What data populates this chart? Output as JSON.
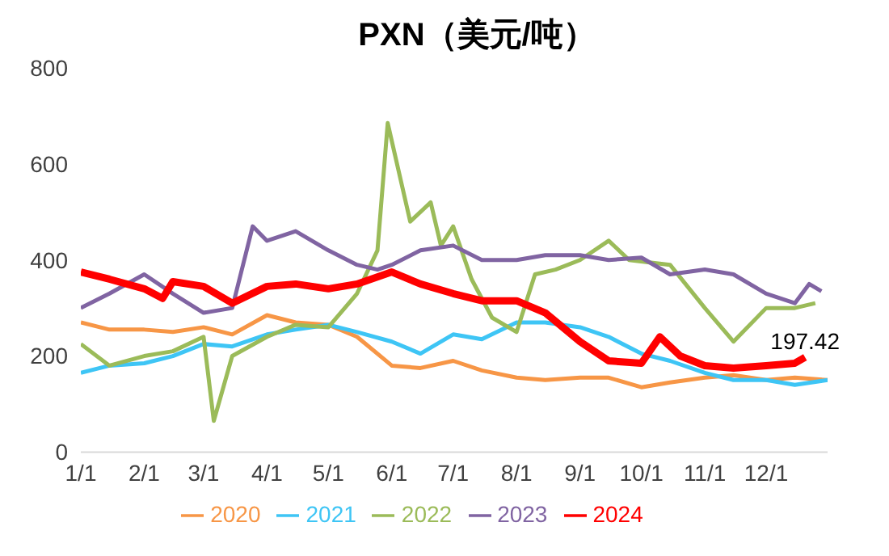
{
  "chart_data": {
    "type": "line",
    "title": "PXN（美元/吨）",
    "ylim": [
      0,
      800
    ],
    "yticks": [
      0,
      200,
      400,
      600,
      800
    ],
    "xlim": [
      "--01-01",
      "--12-31"
    ],
    "xticks": [
      {
        "value": "--01-01",
        "label": "1/1"
      },
      {
        "value": "--02-01",
        "label": "2/1"
      },
      {
        "value": "--03-01",
        "label": "3/1"
      },
      {
        "value": "--04-01",
        "label": "4/1"
      },
      {
        "value": "--05-01",
        "label": "5/1"
      },
      {
        "value": "--06-01",
        "label": "6/1"
      },
      {
        "value": "--07-01",
        "label": "7/1"
      },
      {
        "value": "--08-01",
        "label": "8/1"
      },
      {
        "value": "--09-01",
        "label": "9/1"
      },
      {
        "value": "--10-01",
        "label": "10/1"
      },
      {
        "value": "--11-01",
        "label": "11/1"
      },
      {
        "value": "--12-01",
        "label": "12/1"
      }
    ],
    "grid": false,
    "legend": "bottom",
    "marker": "none",
    "line_style": "solid",
    "annotations": [
      {
        "text": "197.42",
        "x": "--12-20",
        "y": 197.42
      }
    ],
    "series": [
      {
        "name": "2020",
        "color": "#f79646",
        "x": [
          "--01-01",
          "--01-15",
          "--02-01",
          "--02-15",
          "--03-01",
          "--03-15",
          "--04-01",
          "--04-15",
          "--05-01",
          "--05-15",
          "--06-01",
          "--06-15",
          "--07-01",
          "--07-15",
          "--08-01",
          "--08-15",
          "--09-01",
          "--09-15",
          "--10-01",
          "--10-15",
          "--11-01",
          "--11-15",
          "--12-01",
          "--12-15",
          "--12-31"
        ],
        "values": [
          270,
          255,
          255,
          250,
          260,
          245,
          285,
          270,
          265,
          240,
          180,
          175,
          190,
          170,
          155,
          150,
          155,
          155,
          135,
          145,
          155,
          160,
          150,
          155,
          150
        ]
      },
      {
        "name": "2021",
        "color": "#3ec5f5",
        "x": [
          "--01-01",
          "--01-15",
          "--02-01",
          "--02-15",
          "--03-01",
          "--03-15",
          "--04-01",
          "--04-15",
          "--05-01",
          "--05-15",
          "--06-01",
          "--06-15",
          "--07-01",
          "--07-15",
          "--08-01",
          "--08-15",
          "--09-01",
          "--09-15",
          "--10-01",
          "--10-15",
          "--11-01",
          "--11-15",
          "--12-01",
          "--12-15",
          "--12-31"
        ],
        "values": [
          165,
          180,
          185,
          200,
          225,
          220,
          245,
          255,
          265,
          250,
          230,
          205,
          245,
          235,
          270,
          270,
          260,
          240,
          205,
          190,
          165,
          150,
          150,
          140,
          150
        ]
      },
      {
        "name": "2022",
        "color": "#9bbb59",
        "x": [
          "--01-01",
          "--01-15",
          "--02-01",
          "--02-15",
          "--03-01",
          "--03-06",
          "--03-15",
          "--04-01",
          "--04-15",
          "--05-01",
          "--05-15",
          "--05-25",
          "--05-30",
          "--06-10",
          "--06-20",
          "--06-25",
          "--07-01",
          "--07-10",
          "--07-20",
          "--08-01",
          "--08-10",
          "--08-20",
          "--09-01",
          "--09-15",
          "--09-25",
          "--10-15",
          "--11-01",
          "--11-15",
          "--12-01",
          "--12-15",
          "--12-25"
        ],
        "values": [
          225,
          180,
          200,
          210,
          240,
          65,
          200,
          240,
          265,
          260,
          330,
          420,
          685,
          480,
          520,
          430,
          470,
          360,
          280,
          250,
          370,
          380,
          400,
          440,
          400,
          390,
          300,
          230,
          300,
          300,
          310
        ]
      },
      {
        "name": "2023",
        "color": "#8064a2",
        "x": [
          "--01-01",
          "--01-15",
          "--02-01",
          "--02-15",
          "--03-01",
          "--03-15",
          "--03-25",
          "--04-01",
          "--04-15",
          "--05-01",
          "--05-15",
          "--05-25",
          "--06-01",
          "--06-15",
          "--07-01",
          "--07-15",
          "--08-01",
          "--08-15",
          "--09-01",
          "--09-15",
          "--10-01",
          "--10-15",
          "--11-01",
          "--11-15",
          "--12-01",
          "--12-15",
          "--12-22",
          "--12-28"
        ],
        "values": [
          300,
          330,
          370,
          330,
          290,
          300,
          470,
          440,
          460,
          420,
          390,
          380,
          390,
          420,
          430,
          400,
          400,
          410,
          410,
          400,
          405,
          370,
          380,
          370,
          330,
          310,
          350,
          335
        ]
      },
      {
        "name": "2024",
        "color": "#ff0000",
        "x": [
          "--01-01",
          "--01-15",
          "--02-01",
          "--02-10",
          "--02-15",
          "--03-01",
          "--03-15",
          "--04-01",
          "--04-15",
          "--05-01",
          "--05-15",
          "--06-01",
          "--06-15",
          "--07-01",
          "--07-15",
          "--08-01",
          "--08-15",
          "--09-01",
          "--09-15",
          "--10-01",
          "--10-10",
          "--10-20",
          "--11-01",
          "--11-15",
          "--12-01",
          "--12-15",
          "--12-20"
        ],
        "values": [
          375,
          360,
          340,
          320,
          355,
          345,
          310,
          345,
          350,
          340,
          350,
          375,
          350,
          330,
          315,
          315,
          290,
          230,
          190,
          185,
          240,
          200,
          180,
          175,
          180,
          185,
          197.42
        ]
      }
    ]
  }
}
